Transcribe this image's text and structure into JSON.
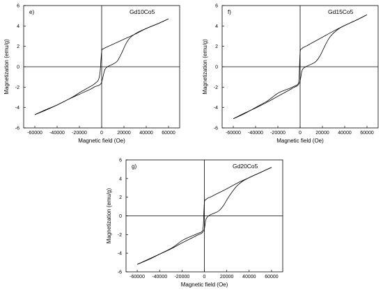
{
  "chart_data": [
    {
      "type": "line",
      "panel_letter": "e)",
      "title": "Gd10Co5",
      "xlabel": "Magnetic field (Oe)",
      "ylabel": "Magnetization (emu/g)",
      "xlim": [
        -70000,
        70000
      ],
      "ylim": [
        -6,
        6
      ],
      "xticks": [
        -60000,
        -40000,
        -20000,
        0,
        20000,
        40000,
        60000
      ],
      "yticks": [
        -6,
        -4,
        -2,
        0,
        2,
        4,
        6
      ],
      "grid": false,
      "series": [
        {
          "x": [
            -60000,
            -50000,
            -40000,
            -30000,
            -25000,
            -20000,
            -16000,
            -12000,
            -8000,
            -5000,
            -3000,
            -1500,
            0,
            1500,
            3000,
            5000,
            10000,
            20000,
            30000,
            40000,
            50000,
            60000
          ],
          "y": [
            -4.7,
            -4.25,
            -3.75,
            -3.2,
            -2.9,
            -2.55,
            -2.3,
            -2.05,
            -1.8,
            -1.55,
            -1.3,
            -0.6,
            1.5,
            1.75,
            1.85,
            1.95,
            2.2,
            2.7,
            3.2,
            3.75,
            4.2,
            4.7
          ]
        },
        {
          "x": [
            60000,
            50000,
            40000,
            32000,
            26000,
            22000,
            18000,
            14000,
            10000,
            6000,
            4000,
            2500,
            0,
            -1500,
            -3000,
            -6000,
            -10000,
            -20000,
            -30000,
            -40000,
            -50000,
            -60000
          ],
          "y": [
            4.7,
            4.2,
            3.75,
            3.35,
            2.9,
            2.3,
            1.35,
            0.55,
            0.25,
            0.05,
            -0.1,
            -0.4,
            -1.5,
            -1.75,
            -1.85,
            -1.95,
            -2.2,
            -2.7,
            -3.2,
            -3.75,
            -4.2,
            -4.7
          ]
        }
      ]
    },
    {
      "type": "line",
      "panel_letter": "f)",
      "title": "Gd15Co5",
      "xlabel": "Magnetic field (Oe)",
      "ylabel": "Magnetization (emu/g)",
      "xlim": [
        -70000,
        70000
      ],
      "ylim": [
        -6,
        6
      ],
      "xticks": [
        -60000,
        -40000,
        -20000,
        0,
        20000,
        40000,
        60000
      ],
      "yticks": [
        -6,
        -4,
        -2,
        0,
        2,
        4,
        6
      ],
      "grid": false,
      "series": [
        {
          "x": [
            -60000,
            -50000,
            -40000,
            -30000,
            -25000,
            -20000,
            -15000,
            -10000,
            -7000,
            -4000,
            -2000,
            -1000,
            0,
            1500,
            3000,
            6000,
            10000,
            20000,
            30000,
            40000,
            50000,
            60000
          ],
          "y": [
            -5.1,
            -4.6,
            -4.0,
            -3.4,
            -3.0,
            -2.6,
            -2.35,
            -2.15,
            -2.0,
            -1.85,
            -1.7,
            -1.2,
            1.4,
            1.75,
            1.9,
            2.05,
            2.3,
            2.9,
            3.5,
            4.05,
            4.55,
            5.1
          ]
        },
        {
          "x": [
            60000,
            50000,
            40000,
            35000,
            30000,
            26000,
            22000,
            18000,
            14000,
            10000,
            6000,
            3000,
            1500,
            0,
            -1500,
            -3000,
            -6000,
            -10000,
            -20000,
            -30000,
            -40000,
            -50000,
            -60000
          ],
          "y": [
            5.1,
            4.55,
            4.05,
            3.75,
            3.3,
            2.8,
            2.0,
            1.1,
            0.5,
            0.25,
            0.05,
            -0.15,
            -0.45,
            -1.4,
            -1.75,
            -1.9,
            -2.05,
            -2.3,
            -2.9,
            -3.5,
            -4.05,
            -4.55,
            -5.1
          ]
        }
      ]
    },
    {
      "type": "line",
      "panel_letter": "g)",
      "title": "Gd20Co5",
      "xlabel": "Magnetic field (Oe)",
      "ylabel": "Magnetization (emu/g)",
      "xlim": [
        -70000,
        70000
      ],
      "ylim": [
        -6,
        6
      ],
      "xticks": [
        -60000,
        -40000,
        -20000,
        0,
        20000,
        40000,
        60000
      ],
      "yticks": [
        -6,
        -4,
        -2,
        0,
        2,
        4,
        6
      ],
      "grid": false,
      "series": [
        {
          "x": [
            -60000,
            -50000,
            -40000,
            -30000,
            -25000,
            -20000,
            -15000,
            -10000,
            -7000,
            -4000,
            -2000,
            -1000,
            0,
            1500,
            3000,
            6000,
            10000,
            20000,
            30000,
            40000,
            50000,
            60000
          ],
          "y": [
            -5.2,
            -4.7,
            -4.1,
            -3.5,
            -3.1,
            -2.65,
            -2.35,
            -2.1,
            -1.95,
            -1.8,
            -1.65,
            -1.15,
            1.4,
            1.75,
            1.9,
            2.05,
            2.3,
            2.9,
            3.55,
            4.1,
            4.65,
            5.2
          ]
        },
        {
          "x": [
            60000,
            50000,
            40000,
            34000,
            29000,
            25000,
            21000,
            17000,
            13000,
            9000,
            5000,
            2500,
            1200,
            0,
            -1500,
            -3000,
            -6000,
            -10000,
            -20000,
            -30000,
            -40000,
            -50000,
            -60000
          ],
          "y": [
            5.2,
            4.65,
            4.1,
            3.7,
            3.2,
            2.6,
            1.9,
            1.1,
            0.55,
            0.3,
            0.1,
            -0.15,
            -0.45,
            -1.4,
            -1.75,
            -1.9,
            -2.05,
            -2.3,
            -2.9,
            -3.55,
            -4.1,
            -4.65,
            -5.2
          ]
        }
      ]
    }
  ]
}
